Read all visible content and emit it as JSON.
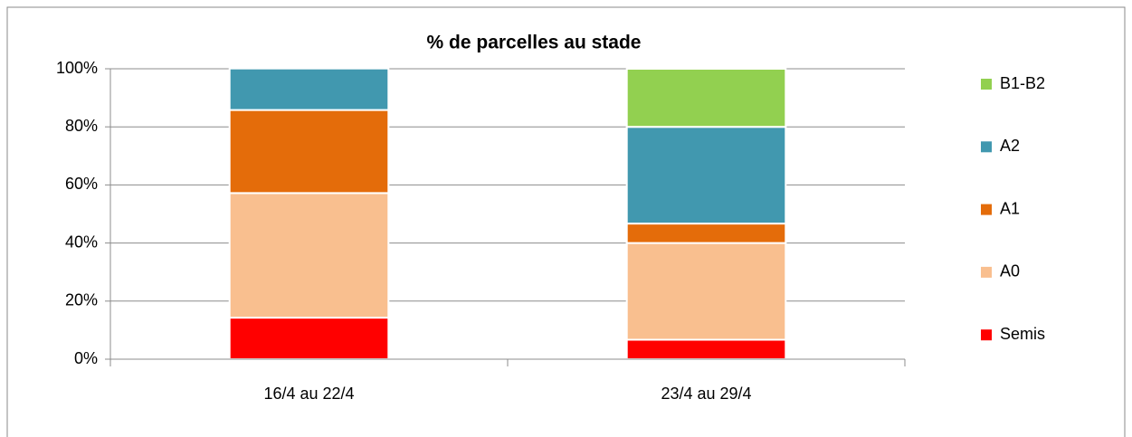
{
  "chart_data": {
    "type": "stacked_bar",
    "title": "% de parcelles au stade",
    "categories": [
      "16/4 au 22/4",
      "23/4 au 29/4"
    ],
    "series": [
      {
        "name": "Semis",
        "color": "#ff0000",
        "values": [
          14.3,
          6.7
        ]
      },
      {
        "name": "A0",
        "color": "#f9bf8f",
        "values": [
          42.9,
          33.3
        ]
      },
      {
        "name": "A1",
        "color": "#e46c0a",
        "values": [
          28.6,
          6.7
        ]
      },
      {
        "name": "A2",
        "color": "#4198af",
        "values": [
          14.3,
          33.3
        ]
      },
      {
        "name": "B1-B2",
        "color": "#92d050",
        "values": [
          0,
          20
        ]
      }
    ],
    "ylim": [
      0,
      100
    ],
    "yticks": [
      {
        "value": 0,
        "label": "0%"
      },
      {
        "value": 20,
        "label": "20%"
      },
      {
        "value": 40,
        "label": "40%"
      },
      {
        "value": 60,
        "label": "60%"
      },
      {
        "value": 80,
        "label": "80%"
      },
      {
        "value": 100,
        "label": "100%"
      }
    ],
    "grid": true,
    "legend": "right"
  }
}
